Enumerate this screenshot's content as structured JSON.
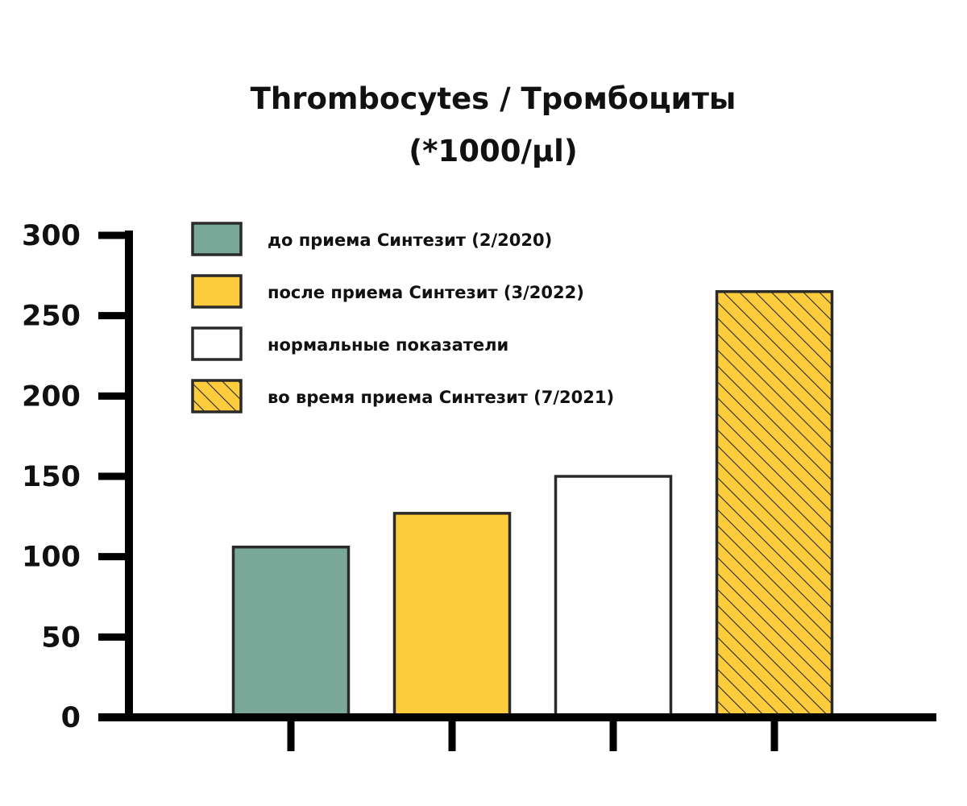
{
  "colors": {
    "green": "#79a898",
    "yellow": "#fccc3c",
    "white": "#ffffff",
    "hatch_stroke": "#2a2a2a",
    "bar_outline": "#2a2a2a",
    "axis": "#000000"
  },
  "chart_data": {
    "type": "bar",
    "title": "Thrombocytes / Тромбоциты",
    "subtitle": "(*1000/µl)",
    "xlabel": "",
    "ylabel": "",
    "ylim": [
      0,
      300
    ],
    "yticks": [
      "0",
      "50",
      "100",
      "150",
      "200",
      "250",
      "300"
    ],
    "grid": false,
    "legend_position": "top-left",
    "categories": [
      "",
      "",
      "",
      ""
    ],
    "series": [
      {
        "name": "до приема Синтезит (2/2020)",
        "value": 106,
        "fill": "green",
        "pattern": "solid"
      },
      {
        "name": "после приема Синтезит (3/2022)",
        "value": 127,
        "fill": "yellow",
        "pattern": "solid"
      },
      {
        "name": "нормальные показатели",
        "value": 150,
        "fill": "white",
        "pattern": "solid"
      },
      {
        "name": "во время приема Синтезит (7/2021)",
        "value": 265,
        "fill": "yellow",
        "pattern": "hatched"
      }
    ],
    "legend_order": [
      0,
      1,
      2,
      3
    ]
  }
}
